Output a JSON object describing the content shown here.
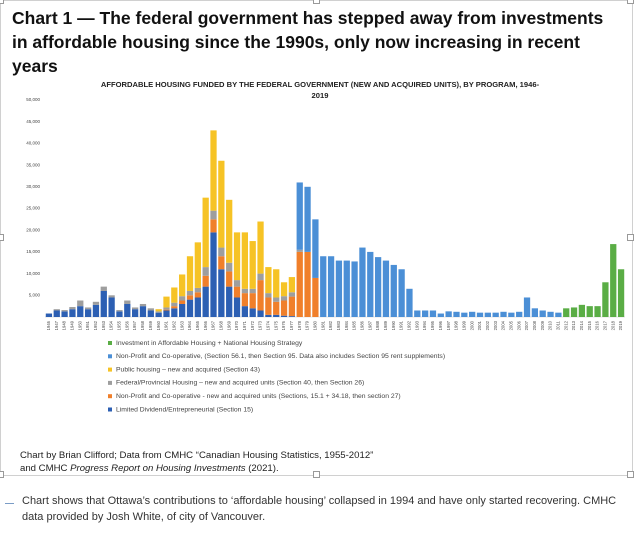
{
  "heading": "Chart 1  — The federal government has stepped away from investments in affordable housing since the 1990s, only now increasing in recent years",
  "source": {
    "line1": "Chart by Brian Clifford; Data from CMHC “Canadian Housing Statistics, 1955-2012”",
    "line2_start": "and CMHC ",
    "line2_italic": "Progress Report on Housing Investments",
    "line2_end": " (2021)."
  },
  "caption": "Chart shows that Ottawa’s contributions to ‘affordable housing’ collapsed in 1994 and have only started recovering. CMHC data provided by Josh White, of city of Vancouver.",
  "chart_data": {
    "type": "bar",
    "stacked": true,
    "title": "AFFORDABLE HOUSING FUNDED BY THE FEDERAL GOVERNMENT (NEW AND ACQUIRED UNITS), BY PROGRAM, 1946-2019",
    "categories": [
      "1946",
      "1947",
      "1948",
      "1949",
      "1950",
      "1951",
      "1952",
      "1953",
      "1954",
      "1955",
      "1956",
      "1957",
      "1958",
      "1959",
      "1960",
      "1961",
      "1962",
      "1963",
      "1964",
      "1965",
      "1966",
      "1967",
      "1968",
      "1969",
      "1970",
      "1971",
      "1972",
      "1973",
      "1974",
      "1975",
      "1976",
      "1977",
      "1978",
      "1979",
      "1980",
      "1981",
      "1982",
      "1983",
      "1984",
      "1985",
      "1986",
      "1987",
      "1988",
      "1989",
      "1990",
      "1991",
      "1992",
      "1993",
      "1994",
      "1995",
      "1996",
      "1997",
      "1998",
      "1999",
      "2000",
      "2001",
      "2002",
      "2003",
      "2004",
      "2005",
      "2006",
      "2007",
      "2008",
      "2009",
      "2010",
      "2011",
      "2012",
      "2013",
      "2014",
      "2015",
      "2016",
      "2017",
      "2018",
      "2019"
    ],
    "series": [
      {
        "name": "Limited Dividend/Entrepreneurial (Section 15)",
        "color": "#2c5fb3",
        "values": [
          800,
          1500,
          1300,
          1800,
          2500,
          1800,
          2800,
          6000,
          4500,
          1300,
          3000,
          1800,
          2500,
          1500,
          1000,
          1500,
          2000,
          3000,
          4000,
          4500,
          7000,
          19500,
          11000,
          7000,
          4500,
          2500,
          2000,
          1500,
          500,
          500,
          300,
          200,
          0,
          0,
          0,
          0,
          0,
          0,
          0,
          0,
          0,
          0,
          0,
          0,
          0,
          0,
          0,
          0,
          0,
          0,
          0,
          0,
          0,
          0,
          0,
          0,
          0,
          0,
          0,
          0,
          0,
          0,
          0,
          0,
          0,
          0,
          0,
          0,
          0,
          0,
          0,
          0,
          0,
          0
        ]
      },
      {
        "name": "Non-Profit and Co-operative - new and acquired units (Sections, 15.1 + 34.18, then section 27)",
        "color": "#f07f2a",
        "values": [
          0,
          0,
          0,
          0,
          0,
          0,
          0,
          0,
          0,
          0,
          0,
          0,
          0,
          0,
          0,
          200,
          500,
          800,
          1000,
          1200,
          2500,
          3000,
          3000,
          3500,
          2500,
          3000,
          3500,
          7000,
          4000,
          3000,
          3500,
          4500,
          15000,
          15000,
          9000,
          0,
          0,
          0,
          0,
          0,
          0,
          0,
          0,
          0,
          0,
          0,
          0,
          0,
          0,
          0,
          0,
          0,
          0,
          0,
          0,
          0,
          0,
          0,
          0,
          0,
          0,
          0,
          0,
          0,
          0,
          0,
          0,
          0,
          0,
          0,
          0,
          0,
          0,
          0
        ]
      },
      {
        "name": "Federal/Provincial Housing – new and acquired units (Section 40, then Section 26)",
        "color": "#9e9e9e",
        "values": [
          0,
          300,
          300,
          500,
          1300,
          400,
          700,
          1000,
          500,
          300,
          800,
          400,
          500,
          500,
          300,
          500,
          800,
          1000,
          1000,
          1000,
          2000,
          2000,
          2000,
          2000,
          1500,
          1000,
          1000,
          1500,
          1000,
          1000,
          1000,
          1000,
          500,
          0,
          0,
          0,
          0,
          0,
          0,
          0,
          0,
          0,
          0,
          0,
          0,
          0,
          0,
          0,
          0,
          0,
          0,
          0,
          0,
          0,
          0,
          0,
          0,
          0,
          0,
          0,
          0,
          0,
          0,
          0,
          0,
          0,
          0,
          0,
          0,
          0,
          0,
          0,
          0,
          0
        ]
      },
      {
        "name": "Public housing – new and acquired (Section 43)",
        "color": "#f6c325",
        "values": [
          0,
          0,
          0,
          0,
          0,
          0,
          0,
          0,
          0,
          0,
          0,
          0,
          0,
          0,
          500,
          2500,
          3500,
          5000,
          8000,
          10500,
          16000,
          18500,
          20000,
          14500,
          11000,
          13000,
          11000,
          12000,
          6000,
          6500,
          3200,
          3500,
          0,
          0,
          0,
          0,
          0,
          0,
          0,
          0,
          0,
          0,
          0,
          0,
          0,
          0,
          0,
          0,
          0,
          0,
          0,
          0,
          0,
          0,
          0,
          0,
          0,
          0,
          0,
          0,
          0,
          0,
          0,
          0,
          0,
          0,
          0,
          0,
          0,
          0,
          0,
          0,
          0,
          0
        ]
      },
      {
        "name": "Non-Profit and Co-operative, (Section 56.1, then Section 95. Data also includes Section 95 rent supplements)",
        "color": "#4b8fd6",
        "values": [
          0,
          0,
          0,
          0,
          0,
          0,
          0,
          0,
          0,
          0,
          0,
          0,
          0,
          0,
          0,
          0,
          0,
          0,
          0,
          0,
          0,
          0,
          0,
          0,
          0,
          0,
          0,
          0,
          0,
          0,
          0,
          0,
          15500,
          15000,
          13500,
          14000,
          14000,
          13000,
          13000,
          12800,
          16000,
          15000,
          13800,
          13000,
          12000,
          11000,
          6500,
          1500,
          1500,
          1500,
          800,
          1300,
          1200,
          1000,
          1200,
          1000,
          1000,
          1000,
          1200,
          1000,
          1200,
          4500,
          2000,
          1500,
          1200,
          1000,
          0,
          0,
          0,
          0,
          0,
          0,
          0,
          0
        ]
      },
      {
        "name": "Investment in Affordable Housing + National Housing Strategy",
        "color": "#5aad45",
        "values": [
          0,
          0,
          0,
          0,
          0,
          0,
          0,
          0,
          0,
          0,
          0,
          0,
          0,
          0,
          0,
          0,
          0,
          0,
          0,
          0,
          0,
          0,
          0,
          0,
          0,
          0,
          0,
          0,
          0,
          0,
          0,
          0,
          0,
          0,
          0,
          0,
          0,
          0,
          0,
          0,
          0,
          0,
          0,
          0,
          0,
          0,
          0,
          0,
          0,
          0,
          0,
          0,
          0,
          0,
          0,
          0,
          0,
          0,
          0,
          0,
          0,
          0,
          0,
          0,
          0,
          0,
          2000,
          2200,
          2800,
          2500,
          2500,
          8000,
          16800,
          11000
        ]
      }
    ],
    "ylim": [
      0,
      50000
    ],
    "yticks": [
      {
        "value": 5000,
        "label": "5,000"
      },
      {
        "value": 10000,
        "label": "10,000"
      },
      {
        "value": 15000,
        "label": "15,000"
      },
      {
        "value": 20000,
        "label": "20,000"
      },
      {
        "value": 25000,
        "label": "25,000"
      },
      {
        "value": 30000,
        "label": "30,000"
      },
      {
        "value": 35000,
        "label": "35,000"
      },
      {
        "value": 40000,
        "label": "40,000"
      },
      {
        "value": 45000,
        "label": "45,000"
      },
      {
        "value": 50000,
        "label": "50,000"
      }
    ],
    "grid": false,
    "legend": "bottom"
  }
}
